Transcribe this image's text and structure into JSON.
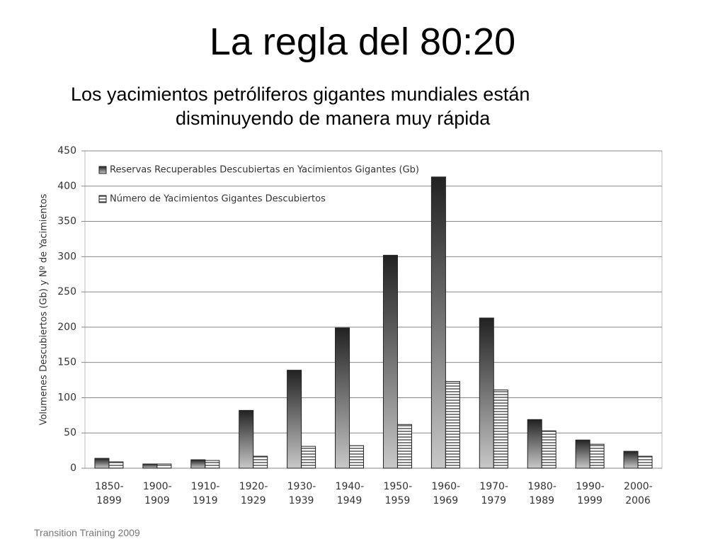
{
  "title": "La regla del 80:20",
  "subtitle": "Los yacimientos petróliferos gigantes mundiales están disminuyendo de manera muy rápida",
  "footer": "Transition Training 2009",
  "chart_data": {
    "type": "bar",
    "y_label": "Volumenes Descubiertos (Gb) y Nº de Yacimientos",
    "categories": [
      "1850-1899",
      "1900-1909",
      "1910-1919",
      "1920-1929",
      "1930-1939",
      "1940-1949",
      "1950-1959",
      "1960-1969",
      "1970-1979",
      "1980-1989",
      "1990-1999",
      "2000-2006"
    ],
    "series": [
      {
        "name": "Reservas Recuperables Descubiertas en Yacimientos Gigantes (Gb)",
        "color": "#222222",
        "values": [
          14,
          6,
          12,
          82,
          139,
          199,
          302,
          413,
          213,
          69,
          40,
          24
        ]
      },
      {
        "name": "Número de Yacimientos Gigantes Descubiertos",
        "color": "#555555",
        "values": [
          9,
          6,
          11,
          17,
          31,
          32,
          62,
          123,
          111,
          53,
          34,
          17
        ]
      }
    ],
    "ylim": [
      0,
      450
    ],
    "yticks": [
      0,
      50,
      100,
      150,
      200,
      250,
      300,
      350,
      400,
      450
    ],
    "grid": true
  }
}
